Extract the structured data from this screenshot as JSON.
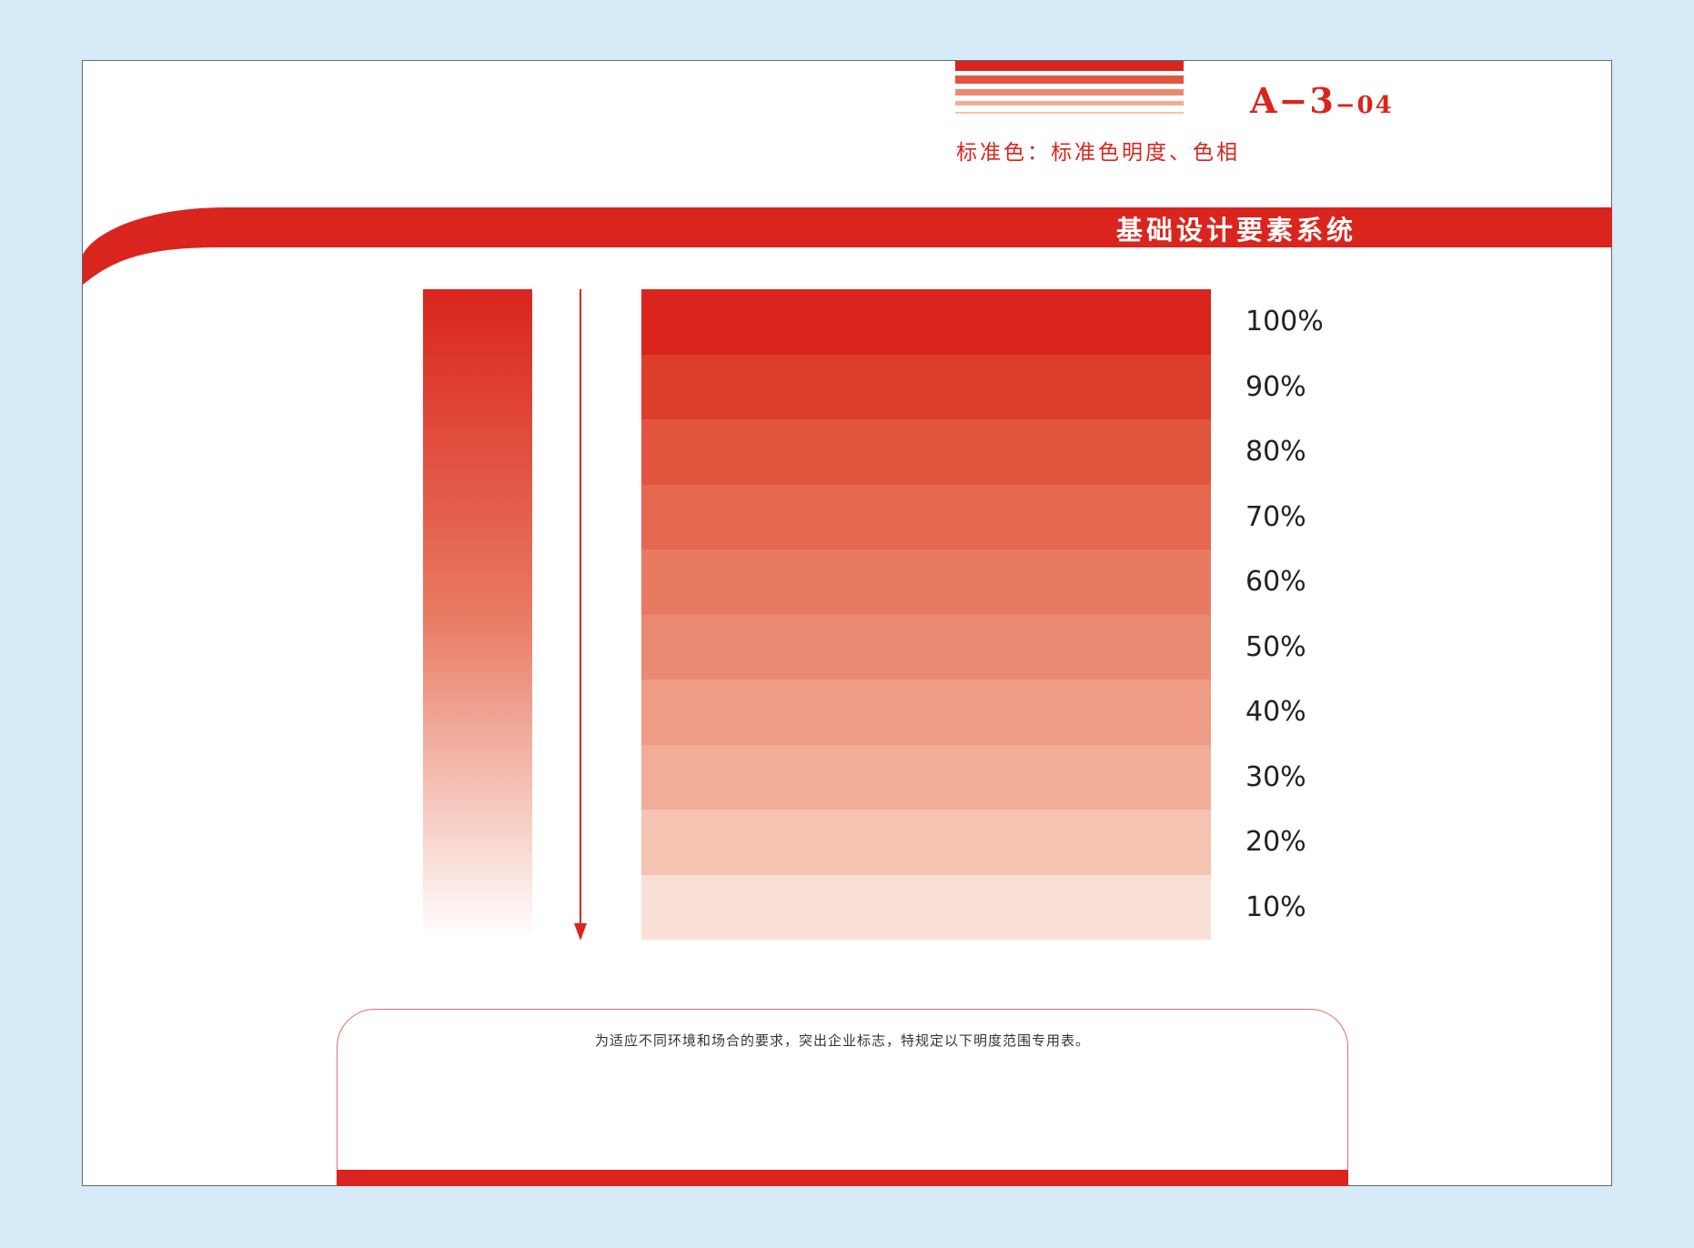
{
  "header": {
    "code_main": "A−3",
    "code_sub": "−04",
    "subtitle": "标准色：标准色明度、色相",
    "band_title": "基础设计要素系统"
  },
  "colors": {
    "brand_red": "#d9251d",
    "background": "#d6eaf8"
  },
  "swatches": [
    {
      "label": "100%",
      "tint": 100,
      "color": "#d9251d"
    },
    {
      "label": "90%",
      "tint": 90,
      "color": "#dd3d2b"
    },
    {
      "label": "80%",
      "tint": 80,
      "color": "#e1553f"
    },
    {
      "label": "70%",
      "tint": 70,
      "color": "#e56850"
    },
    {
      "label": "60%",
      "tint": 60,
      "color": "#e97a62"
    },
    {
      "label": "50%",
      "tint": 50,
      "color": "#eb8a72"
    },
    {
      "label": "40%",
      "tint": 40,
      "color": "#ee9c86"
    },
    {
      "label": "30%",
      "tint": 30,
      "color": "#f1ad98"
    },
    {
      "label": "20%",
      "tint": 20,
      "color": "#f4c3b2"
    },
    {
      "label": "10%",
      "tint": 10,
      "color": "#f9e0d6"
    }
  ],
  "note": "为适应不同环境和场合的要求，突出企业标志，特规定以下明度范围专用表。"
}
